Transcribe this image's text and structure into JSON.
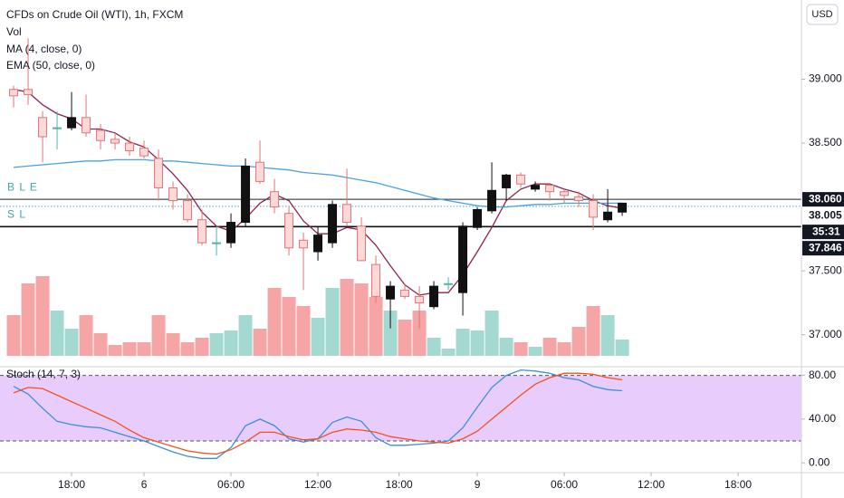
{
  "chart_data": [
    {
      "type": "candlestick",
      "title": "CFDs on Crude Oil (WTI), 1h, FXCM",
      "currency": "USD",
      "xlim": [
        -0.94,
        54.37
      ],
      "xticks": [
        {
          "value": 4,
          "label": "18:00"
        },
        {
          "value": 9,
          "label": "6"
        },
        {
          "value": 15,
          "label": "06:00"
        },
        {
          "value": 21,
          "label": "12:00"
        },
        {
          "value": 26.6,
          "label": "18:00"
        },
        {
          "value": 32,
          "label": "9"
        },
        {
          "value": 38,
          "label": "06:00"
        },
        {
          "value": 44,
          "label": "12:00"
        },
        {
          "value": 50,
          "label": "18:00"
        }
      ],
      "ylim": [
        36.75,
        39.62
      ],
      "yticks": [
        {
          "value": 39,
          "label": "39.000"
        },
        {
          "value": 38.5,
          "label": "38.500"
        },
        {
          "value": 37.5,
          "label": "37.500"
        },
        {
          "value": 37,
          "label": "37.000"
        }
      ],
      "up_color": "#111111",
      "down_color": "#e57373",
      "down_fill": "#fcd9d9",
      "doji_color": "#4db6ac",
      "open": [
        38.92,
        38.92,
        38.7,
        38.62,
        38.62,
        38.7,
        38.6,
        38.53,
        38.5,
        38.46,
        38.38,
        38.15,
        38.05,
        37.9,
        37.72,
        37.72,
        37.88,
        38.35,
        38.12,
        37.95,
        37.74,
        37.65,
        37.72,
        38.02,
        37.85,
        37.55,
        37.28,
        37.35,
        37.3,
        37.22,
        37.4,
        37.33,
        37.84,
        37.97,
        38.15,
        38.25,
        38.14,
        38.17,
        38.12,
        38.08,
        38.05,
        37.9,
        37.96
      ],
      "high": [
        38.95,
        39.32,
        38.75,
        38.75,
        38.9,
        38.88,
        38.65,
        38.58,
        38.55,
        38.52,
        38.45,
        38.2,
        38.1,
        37.98,
        37.85,
        37.95,
        38.38,
        38.52,
        38.22,
        38.0,
        37.8,
        37.85,
        38.05,
        38.3,
        37.92,
        37.62,
        37.42,
        37.4,
        37.38,
        37.42,
        37.45,
        37.88,
        38.0,
        38.35,
        38.26,
        38.27,
        38.2,
        38.18,
        38.14,
        38.12,
        38.1,
        38.14,
        38.03
      ],
      "low": [
        38.78,
        38.8,
        38.35,
        38.45,
        38.6,
        38.55,
        38.45,
        38.45,
        38.4,
        38.38,
        38.05,
        37.98,
        37.88,
        37.7,
        37.62,
        37.68,
        37.85,
        38.18,
        37.95,
        37.62,
        37.35,
        37.58,
        37.68,
        37.85,
        37.58,
        37.25,
        37.05,
        37.28,
        37.05,
        37.2,
        37.35,
        37.15,
        37.82,
        37.95,
        38.05,
        38.15,
        38.12,
        38.05,
        38.03,
        38.0,
        37.82,
        37.88,
        37.93
      ],
      "close": [
        38.87,
        38.88,
        38.55,
        38.62,
        38.7,
        38.58,
        38.52,
        38.5,
        38.44,
        38.4,
        38.15,
        38.05,
        37.9,
        37.72,
        37.72,
        37.88,
        38.32,
        38.2,
        38.0,
        37.68,
        37.68,
        37.78,
        38.02,
        37.88,
        37.58,
        37.3,
        37.38,
        37.3,
        37.25,
        37.38,
        37.4,
        37.85,
        37.98,
        38.13,
        38.25,
        38.18,
        38.17,
        38.12,
        38.09,
        38.05,
        37.92,
        37.96,
        38.03
      ],
      "volume_label": "Vol",
      "volume": [
        45,
        80,
        88,
        50,
        30,
        45,
        25,
        12,
        15,
        15,
        45,
        25,
        15,
        20,
        25,
        28,
        45,
        30,
        75,
        65,
        55,
        42,
        75,
        85,
        80,
        65,
        50,
        40,
        50,
        20,
        8,
        30,
        28,
        50,
        20,
        15,
        10,
        20,
        15,
        32,
        55,
        45,
        18
      ],
      "volume_up_color": "#a3d9d1",
      "volume_down_color": "#f5a5a5",
      "indicators": [
        {
          "name": "MA (4, close, 0)",
          "color": "#8e2350",
          "values": [
            38.92,
            38.9,
            38.8,
            38.73,
            38.69,
            38.61,
            38.61,
            38.58,
            38.51,
            38.47,
            38.37,
            38.26,
            38.13,
            37.96,
            37.85,
            37.81,
            37.91,
            38.03,
            38.1,
            38.05,
            37.89,
            37.79,
            37.79,
            37.84,
            37.82,
            37.7,
            37.54,
            37.39,
            37.31,
            37.33,
            37.33,
            37.47,
            37.65,
            37.84,
            38.05,
            38.14,
            38.18,
            38.18,
            38.14,
            38.11,
            38.05,
            38.01,
            37.99
          ]
        },
        {
          "name": "EMA (50, close, 0)",
          "color": "#4aa3df",
          "values": [
            38.31,
            38.32,
            38.33,
            38.34,
            38.35,
            38.36,
            38.36,
            38.37,
            38.37,
            38.37,
            38.36,
            38.36,
            38.35,
            38.34,
            38.33,
            38.32,
            38.32,
            38.31,
            38.3,
            38.29,
            38.27,
            38.26,
            38.25,
            38.23,
            38.21,
            38.19,
            38.16,
            38.13,
            38.1,
            38.07,
            38.05,
            38.03,
            38.01,
            38.0,
            38.0,
            38.01,
            38.02,
            38.02,
            38.03,
            38.03,
            38.03,
            38.03,
            38.03
          ]
        }
      ],
      "levels": [
        {
          "label": "B L E",
          "value": 38.06,
          "value_label": "38.060",
          "color": "#222222",
          "style": "solid"
        },
        {
          "value": 38.005,
          "value_label": "38.005",
          "countdown": "35:31",
          "color": "#4aa3df",
          "style": "dotted"
        },
        {
          "label": "S L",
          "value": 37.846,
          "value_label": "37.846",
          "color": "#111111",
          "style": "thick"
        }
      ]
    },
    {
      "type": "line",
      "title": "Stoch (14, 7, 3)",
      "ylim": [
        -9,
        88
      ],
      "yticks": [
        {
          "value": 80,
          "label": "80.00"
        },
        {
          "value": 40,
          "label": "40.00"
        },
        {
          "value": 0,
          "label": "0.00"
        }
      ],
      "bands": [
        20,
        80
      ],
      "band_color": "#e8cdfc",
      "series": [
        {
          "color": "#3d8fd9",
          "values": [
            70,
            63,
            50,
            38,
            35,
            33,
            32,
            28,
            24,
            20,
            15,
            10,
            6,
            4,
            4,
            14,
            34,
            40,
            34,
            22,
            19,
            22,
            37,
            42,
            38,
            23,
            16,
            16,
            17,
            18,
            20,
            32,
            51,
            69,
            80,
            85,
            84,
            82,
            78,
            76,
            70,
            67,
            66
          ]
        },
        {
          "color": "#f4511e",
          "values": [
            64,
            69,
            68,
            62,
            56,
            50,
            44,
            38,
            30,
            23,
            19,
            15,
            11,
            9,
            8,
            12,
            19,
            28,
            28,
            24,
            21,
            22,
            28,
            31,
            30,
            28,
            24,
            22,
            20,
            19,
            18,
            22,
            29,
            40,
            51,
            62,
            72,
            78,
            82,
            82,
            81,
            78,
            76
          ]
        }
      ]
    }
  ]
}
